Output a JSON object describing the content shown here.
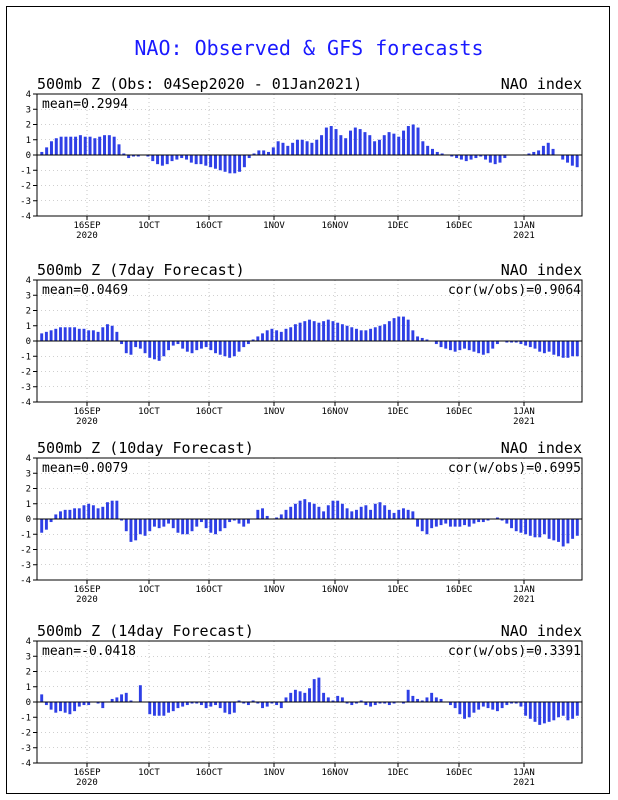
{
  "page": {
    "title": "NAO: Observed & GFS forecasts"
  },
  "colors": {
    "bar": "#2e3fe6",
    "grid": "#a0a0a0",
    "title": "#1a1aff",
    "axis": "#000000"
  },
  "chart_data": [
    {
      "type": "bar",
      "title": "500mb Z (Obs: 04Sep2020 - 01Jan2021)",
      "right_label": "NAO index",
      "mean_label": "mean=0.2994",
      "cor_label": "",
      "ylim": [
        -4,
        4
      ],
      "yticks": [
        4,
        3,
        2,
        1,
        0,
        -1,
        -2,
        -3,
        -4
      ],
      "x_tick_labels": [
        "16SEP",
        "1OCT",
        "16OCT",
        "1NOV",
        "16NOV",
        "1DEC",
        "16DEC",
        "1JAN"
      ],
      "x_year_labels": [
        "2020",
        "",
        "",
        "",
        "",
        "",
        "",
        "2021"
      ],
      "dashed_zero_tail": true,
      "values": [
        0.2,
        0.5,
        0.9,
        1.1,
        1.2,
        1.2,
        1.2,
        1.2,
        1.3,
        1.2,
        1.2,
        1.1,
        1.2,
        1.3,
        1.3,
        1.2,
        0.7,
        0.1,
        -0.2,
        -0.1,
        -0.1,
        0.0,
        -0.1,
        -0.4,
        -0.6,
        -0.7,
        -0.6,
        -0.4,
        -0.3,
        -0.2,
        -0.3,
        -0.5,
        -0.6,
        -0.6,
        -0.7,
        -0.8,
        -0.9,
        -1.0,
        -1.1,
        -1.2,
        -1.2,
        -1.1,
        -0.8,
        -0.2,
        0.1,
        0.3,
        0.3,
        0.2,
        0.5,
        0.9,
        0.8,
        0.6,
        0.8,
        1.0,
        1.0,
        0.9,
        0.8,
        1.0,
        1.3,
        1.8,
        1.9,
        1.7,
        1.3,
        1.1,
        1.6,
        1.8,
        1.7,
        1.5,
        1.3,
        0.9,
        1.0,
        1.3,
        1.5,
        1.4,
        1.2,
        1.6,
        1.9,
        2.0,
        1.8,
        0.9,
        0.6,
        0.4,
        0.2,
        0.1,
        0.0,
        -0.1,
        -0.2,
        -0.3,
        -0.4,
        -0.3,
        -0.2,
        -0.1,
        -0.3,
        -0.5,
        -0.6,
        -0.5,
        -0.2,
        0.0,
        0.0,
        0.0,
        0.0,
        0.1,
        0.2,
        0.3,
        0.6,
        0.8,
        0.4,
        0.0,
        -0.3,
        -0.5,
        -0.7,
        -0.8
      ]
    },
    {
      "type": "bar",
      "title": "500mb Z (7day Forecast)",
      "right_label": "NAO index",
      "mean_label": "mean=0.0469",
      "cor_label": "cor(w/obs)=0.9064",
      "ylim": [
        -4,
        4
      ],
      "yticks": [
        4,
        3,
        2,
        1,
        0,
        -1,
        -2,
        -3,
        -4
      ],
      "x_tick_labels": [
        "16SEP",
        "1OCT",
        "16OCT",
        "1NOV",
        "16NOV",
        "1DEC",
        "16DEC",
        "1JAN"
      ],
      "x_year_labels": [
        "2020",
        "",
        "",
        "",
        "",
        "",
        "",
        "2021"
      ],
      "dashed_zero_tail": false,
      "values": [
        0.5,
        0.6,
        0.7,
        0.8,
        0.9,
        0.9,
        0.9,
        0.9,
        0.8,
        0.8,
        0.7,
        0.7,
        0.6,
        0.9,
        1.1,
        1.0,
        0.6,
        -0.2,
        -0.8,
        -0.9,
        -0.4,
        -0.5,
        -0.8,
        -1.1,
        -1.2,
        -1.3,
        -1.0,
        -0.6,
        -0.3,
        -0.2,
        -0.5,
        -0.7,
        -0.8,
        -0.6,
        -0.5,
        -0.4,
        -0.6,
        -0.8,
        -0.9,
        -1.0,
        -1.1,
        -1.0,
        -0.7,
        -0.4,
        -0.2,
        0.1,
        0.3,
        0.5,
        0.7,
        0.8,
        0.7,
        0.6,
        0.8,
        0.9,
        1.1,
        1.2,
        1.3,
        1.4,
        1.3,
        1.2,
        1.3,
        1.4,
        1.3,
        1.2,
        1.1,
        1.0,
        0.9,
        0.8,
        0.7,
        0.7,
        0.8,
        0.9,
        1.0,
        1.1,
        1.3,
        1.5,
        1.6,
        1.6,
        1.4,
        0.7,
        0.3,
        0.2,
        0.1,
        0.0,
        -0.2,
        -0.4,
        -0.5,
        -0.6,
        -0.7,
        -0.6,
        -0.5,
        -0.6,
        -0.7,
        -0.8,
        -0.9,
        -0.8,
        -0.5,
        -0.2,
        0.0,
        -0.1,
        -0.1,
        -0.1,
        -0.2,
        -0.3,
        -0.4,
        -0.5,
        -0.7,
        -0.8,
        -0.7,
        -0.9,
        -1.0,
        -1.1,
        -1.1,
        -1.0,
        -1.0
      ]
    },
    {
      "type": "bar",
      "title": "500mb Z (10day Forecast)",
      "right_label": "NAO index",
      "mean_label": "mean=0.0079",
      "cor_label": "cor(w/obs)=0.6995",
      "ylim": [
        -4,
        4
      ],
      "yticks": [
        4,
        3,
        2,
        1,
        0,
        -1,
        -2,
        -3,
        -4
      ],
      "x_tick_labels": [
        "16SEP",
        "1OCT",
        "16OCT",
        "1NOV",
        "16NOV",
        "1DEC",
        "16DEC",
        "1JAN"
      ],
      "x_year_labels": [
        "2020",
        "",
        "",
        "",
        "",
        "",
        "",
        "2021"
      ],
      "dashed_zero_tail": false,
      "values": [
        -0.9,
        -0.7,
        -0.2,
        0.3,
        0.5,
        0.6,
        0.6,
        0.7,
        0.7,
        0.9,
        1.0,
        0.9,
        0.7,
        0.8,
        1.1,
        1.2,
        1.2,
        -0.1,
        -0.8,
        -1.5,
        -1.4,
        -1.0,
        -1.1,
        -0.8,
        -0.5,
        -0.6,
        -0.5,
        -0.3,
        -0.6,
        -0.9,
        -1.0,
        -1.0,
        -0.8,
        -0.5,
        -0.2,
        -0.6,
        -0.9,
        -1.0,
        -0.8,
        -0.6,
        -0.2,
        -0.1,
        -0.3,
        -0.5,
        -0.3,
        0.0,
        0.6,
        0.7,
        0.2,
        0.0,
        0.1,
        0.3,
        0.6,
        0.8,
        1.0,
        1.2,
        1.3,
        1.1,
        1.0,
        0.8,
        0.5,
        0.9,
        1.2,
        1.2,
        1.0,
        0.7,
        0.5,
        0.6,
        0.8,
        0.9,
        0.6,
        1.0,
        1.1,
        0.9,
        0.6,
        0.4,
        0.6,
        0.7,
        0.6,
        0.5,
        -0.5,
        -0.8,
        -1.0,
        -0.6,
        -0.5,
        -0.4,
        -0.3,
        -0.5,
        -0.5,
        -0.5,
        -0.4,
        -0.5,
        -0.3,
        -0.2,
        -0.2,
        -0.1,
        0.0,
        0.1,
        -0.1,
        -0.3,
        -0.6,
        -0.8,
        -0.9,
        -1.0,
        -1.1,
        -1.2,
        -1.2,
        -1.0,
        -1.3,
        -1.4,
        -1.5,
        -1.8,
        -1.6,
        -1.3,
        -1.1
      ]
    },
    {
      "type": "bar",
      "title": "500mb Z (14day Forecast)",
      "right_label": "NAO index",
      "mean_label": "mean=-0.0418",
      "cor_label": "cor(w/obs)=0.3391",
      "ylim": [
        -4,
        4
      ],
      "yticks": [
        4,
        3,
        2,
        1,
        0,
        -1,
        -2,
        -3,
        -4
      ],
      "x_tick_labels": [
        "16SEP",
        "1OCT",
        "16OCT",
        "1NOV",
        "16NOV",
        "1DEC",
        "16DEC",
        "1JAN"
      ],
      "x_year_labels": [
        "2020",
        "",
        "",
        "",
        "",
        "",
        "",
        "2021"
      ],
      "dashed_zero_tail": false,
      "values": [
        0.5,
        -0.2,
        -0.5,
        -0.7,
        -0.6,
        -0.7,
        -0.8,
        -0.6,
        -0.3,
        -0.2,
        -0.2,
        0.0,
        -0.1,
        -0.4,
        0.0,
        0.2,
        0.3,
        0.5,
        0.6,
        0.1,
        0.0,
        1.1,
        0.0,
        -0.8,
        -0.9,
        -0.9,
        -0.9,
        -0.7,
        -0.6,
        -0.4,
        -0.3,
        -0.2,
        -0.1,
        -0.1,
        -0.2,
        -0.4,
        -0.3,
        -0.2,
        -0.4,
        -0.7,
        -0.8,
        -0.7,
        0.1,
        -0.1,
        -0.2,
        0.1,
        -0.1,
        -0.4,
        -0.3,
        -0.1,
        -0.2,
        -0.4,
        0.3,
        0.6,
        0.8,
        0.7,
        0.6,
        0.9,
        1.5,
        1.6,
        0.6,
        0.3,
        0.1,
        0.4,
        0.3,
        -0.1,
        -0.2,
        -0.1,
        0.1,
        -0.2,
        -0.3,
        -0.2,
        -0.1,
        -0.1,
        -0.2,
        -0.1,
        0.0,
        -0.1,
        0.8,
        0.4,
        0.2,
        0.1,
        0.3,
        0.6,
        0.3,
        0.2,
        0.0,
        -0.2,
        -0.4,
        -0.8,
        -1.1,
        -1.0,
        -0.7,
        -0.5,
        -0.3,
        -0.4,
        -0.5,
        -0.6,
        -0.4,
        -0.2,
        -0.1,
        -0.1,
        -0.3,
        -0.9,
        -1.1,
        -1.3,
        -1.5,
        -1.4,
        -1.3,
        -1.2,
        -1.0,
        -0.9,
        -1.2,
        -1.1,
        -0.9
      ]
    }
  ]
}
